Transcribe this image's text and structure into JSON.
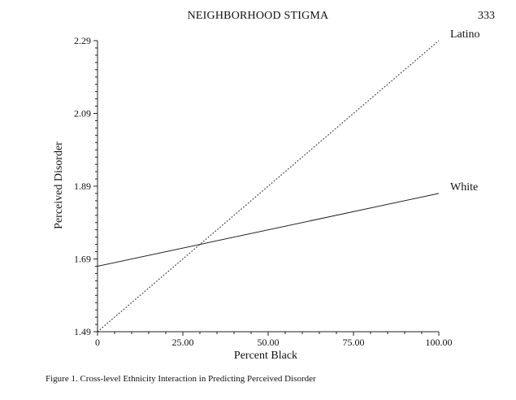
{
  "header": {
    "running_head": "NEIGHBORHOOD STIGMA",
    "page_number": "333"
  },
  "caption": "Figure 1. Cross-level Ethnicity Interaction in Predicting Perceived Disorder",
  "chart_data": {
    "type": "line",
    "title": "",
    "xlabel": "Percent Black",
    "ylabel": "Perceived Disorder",
    "xlim": [
      0,
      100
    ],
    "ylim": [
      1.49,
      2.29
    ],
    "x_ticks": [
      0,
      25,
      50,
      75,
      100
    ],
    "x_tick_labels": [
      "0",
      "25.00",
      "50.00",
      "75.00",
      "100.00"
    ],
    "y_ticks": [
      1.49,
      1.69,
      1.89,
      2.09,
      2.29
    ],
    "y_tick_labels": [
      "1.49",
      "1.69",
      "1.89",
      "2.09",
      "2.29"
    ],
    "grid": false,
    "series": [
      {
        "name": "Latino",
        "style": "dotted",
        "x": [
          0,
          100
        ],
        "y": [
          1.49,
          2.29
        ]
      },
      {
        "name": "White",
        "style": "solid",
        "x": [
          0,
          100
        ],
        "y": [
          1.67,
          1.87
        ]
      }
    ]
  }
}
